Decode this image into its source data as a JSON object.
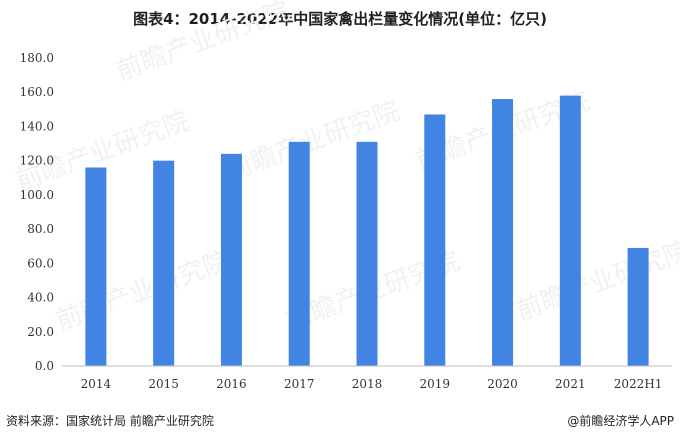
{
  "title": "图表4：2014-2022年中国家禽出栏量变化情况(单位：亿只)",
  "source": "资料来源：国家统计局 前瞻产业研究院",
  "brand": "@前瞻经济学人APP",
  "watermark": "前瞻产业研究院",
  "colors": {
    "bar": "#4184e4",
    "axis": "#bfbfbf",
    "text": "#333333"
  },
  "chart_data": {
    "type": "bar",
    "categories": [
      "2014",
      "2015",
      "2016",
      "2017",
      "2018",
      "2019",
      "2020",
      "2021",
      "2022H1"
    ],
    "values": [
      116,
      120,
      124,
      131,
      131,
      147,
      156,
      158,
      69
    ],
    "ylim": [
      0,
      180
    ],
    "yticks": [
      "0.0",
      "20.0",
      "40.0",
      "60.0",
      "80.0",
      "100.0",
      "120.0",
      "140.0",
      "160.0",
      "180.0"
    ],
    "grid": false,
    "legend": "none"
  }
}
